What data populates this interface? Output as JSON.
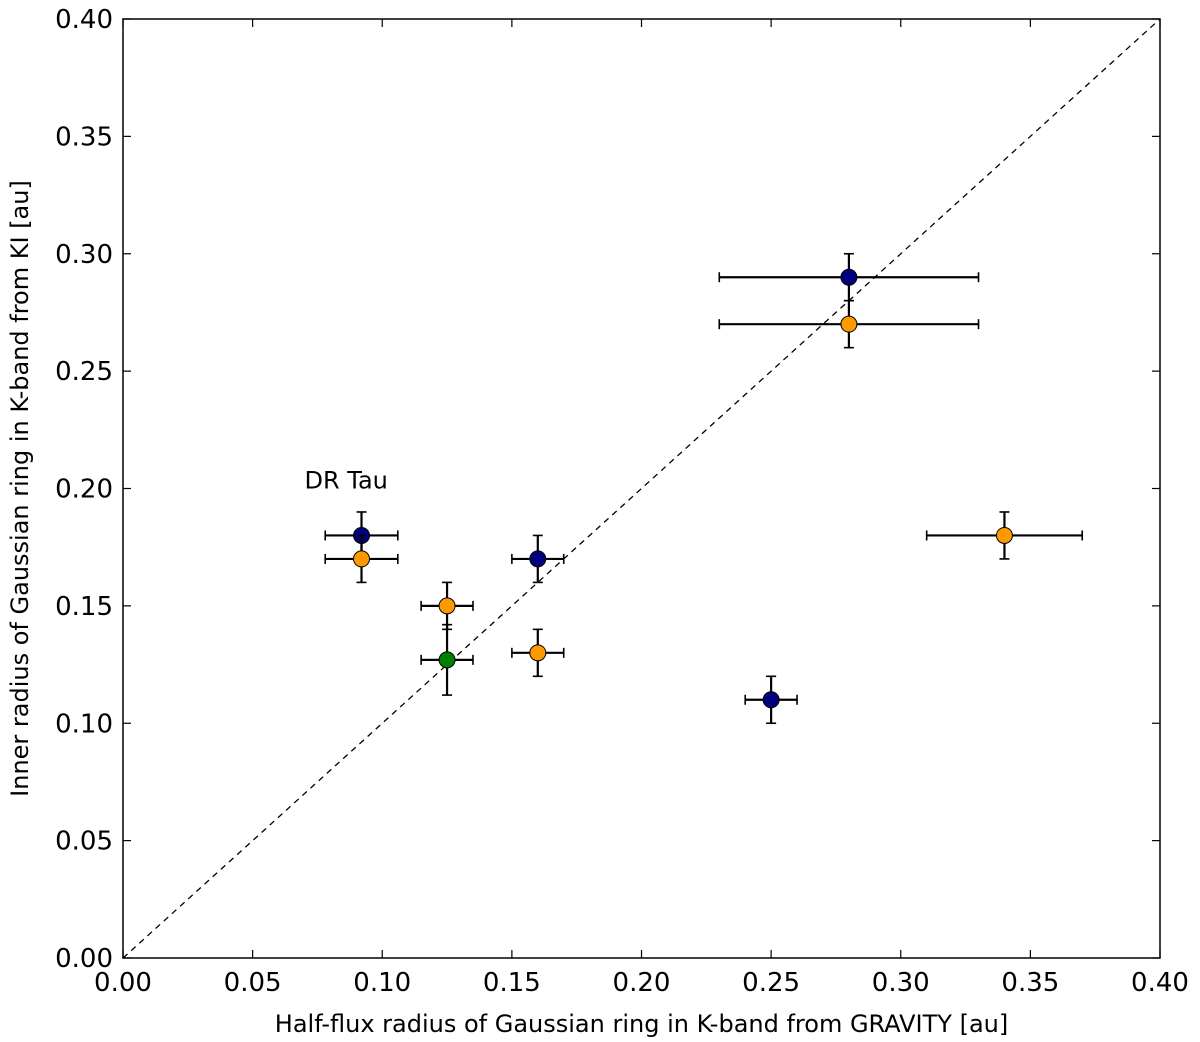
{
  "chart_data": {
    "type": "scatter",
    "title": "",
    "xlabel": "Half-flux radius of Gaussian ring in K-band from GRAVITY [au]",
    "ylabel": "Inner radius of Gaussian ring in K-band from KI [au]",
    "xlim": [
      0.0,
      0.4
    ],
    "ylim": [
      0.0,
      0.4
    ],
    "xticks": [
      "0.00",
      "0.05",
      "0.10",
      "0.15",
      "0.20",
      "0.25",
      "0.30",
      "0.35",
      "0.40"
    ],
    "yticks": [
      "0.00",
      "0.05",
      "0.10",
      "0.15",
      "0.20",
      "0.25",
      "0.30",
      "0.35",
      "0.40"
    ],
    "grid": false,
    "reference_line": {
      "style": "dashed",
      "from": [
        0.0,
        0.0
      ],
      "to": [
        0.4,
        0.4
      ]
    },
    "series": [
      {
        "name": "navy",
        "color": "#00007f",
        "points": [
          {
            "x": 0.092,
            "y": 0.18,
            "xerr": 0.014,
            "yerr": 0.01
          },
          {
            "x": 0.16,
            "y": 0.17,
            "xerr": 0.01,
            "yerr": 0.01
          },
          {
            "x": 0.28,
            "y": 0.29,
            "xerr": 0.05,
            "yerr": 0.01
          },
          {
            "x": 0.25,
            "y": 0.11,
            "xerr": 0.01,
            "yerr": 0.01
          }
        ]
      },
      {
        "name": "orange",
        "color": "#ff9900",
        "points": [
          {
            "x": 0.092,
            "y": 0.17,
            "xerr": 0.014,
            "yerr": 0.01
          },
          {
            "x": 0.125,
            "y": 0.15,
            "xerr": 0.01,
            "yerr": 0.01
          },
          {
            "x": 0.16,
            "y": 0.13,
            "xerr": 0.01,
            "yerr": 0.01
          },
          {
            "x": 0.28,
            "y": 0.27,
            "xerr": 0.05,
            "yerr": 0.01
          },
          {
            "x": 0.34,
            "y": 0.18,
            "xerr": 0.03,
            "yerr": 0.01
          }
        ]
      },
      {
        "name": "green",
        "color": "#007f00",
        "points": [
          {
            "x": 0.125,
            "y": 0.127,
            "xerr": 0.01,
            "yerr": 0.015
          }
        ]
      }
    ],
    "annotations": [
      {
        "text": "DR Tau",
        "x": 0.07,
        "y": 0.2
      }
    ]
  }
}
